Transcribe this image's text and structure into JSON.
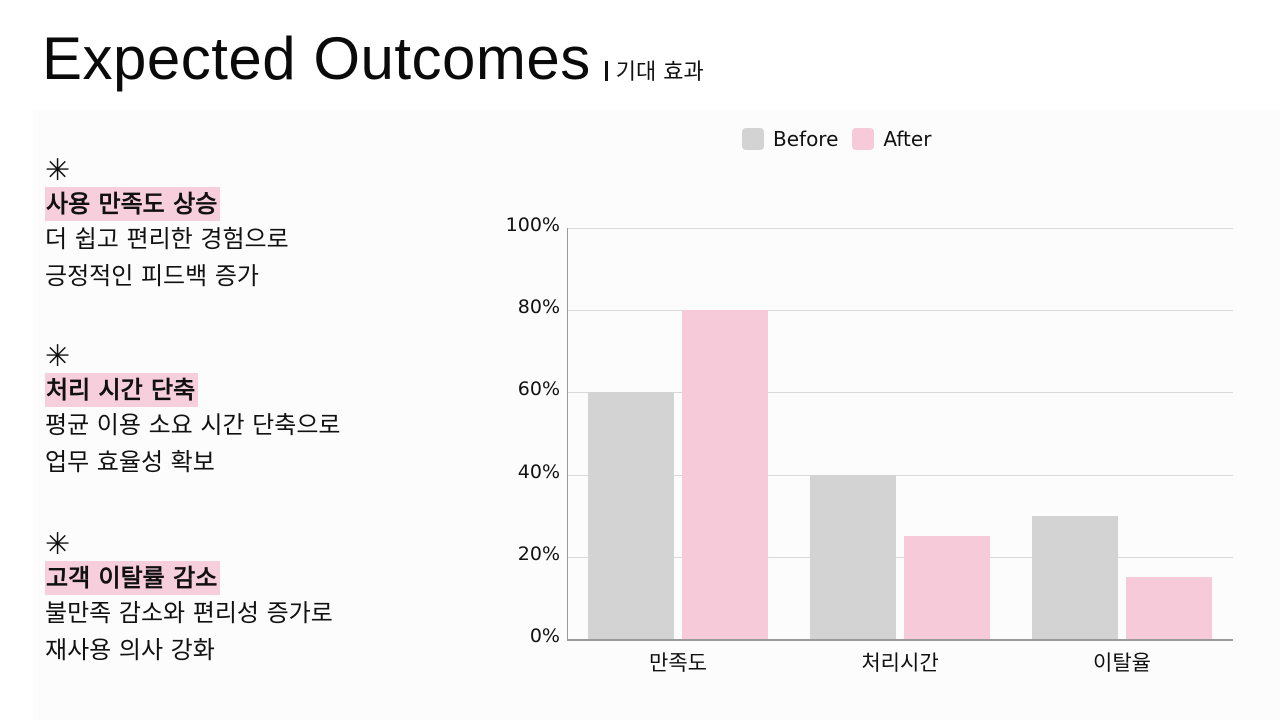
{
  "title": {
    "main": "Expected Outcomes",
    "sub": "기대 효과"
  },
  "points": [
    {
      "icon": "✳",
      "heading": "사용 만족도 상승",
      "lines": [
        "더 쉽고 편리한 경험으로",
        "긍정적인 피드백 증가"
      ]
    },
    {
      "icon": "✳",
      "heading": "처리 시간 단축",
      "lines": [
        "평균 이용 소요 시간 단축으로",
        "업무 효율성 확보"
      ]
    },
    {
      "icon": "✳",
      "heading": "고객 이탈률 감소",
      "lines": [
        "불만족 감소와 편리성 증가로",
        "재사용 의사 강화"
      ]
    }
  ],
  "colors": {
    "before": "#d3d3d3",
    "after": "#f6cad8",
    "highlight": "#f6cedc"
  },
  "chart_data": {
    "type": "bar",
    "title": "",
    "categories": [
      "만족도",
      "처리시간",
      "이탈율"
    ],
    "series": [
      {
        "name": "Before",
        "values": [
          60,
          40,
          30
        ]
      },
      {
        "name": "After",
        "values": [
          80,
          25,
          15
        ]
      }
    ],
    "yticks": [
      "0%",
      "20%",
      "40%",
      "60%",
      "80%",
      "100%"
    ],
    "xlabel": "",
    "ylabel": "",
    "ylim": [
      0,
      100
    ],
    "grid": true,
    "legend_position": "top"
  }
}
